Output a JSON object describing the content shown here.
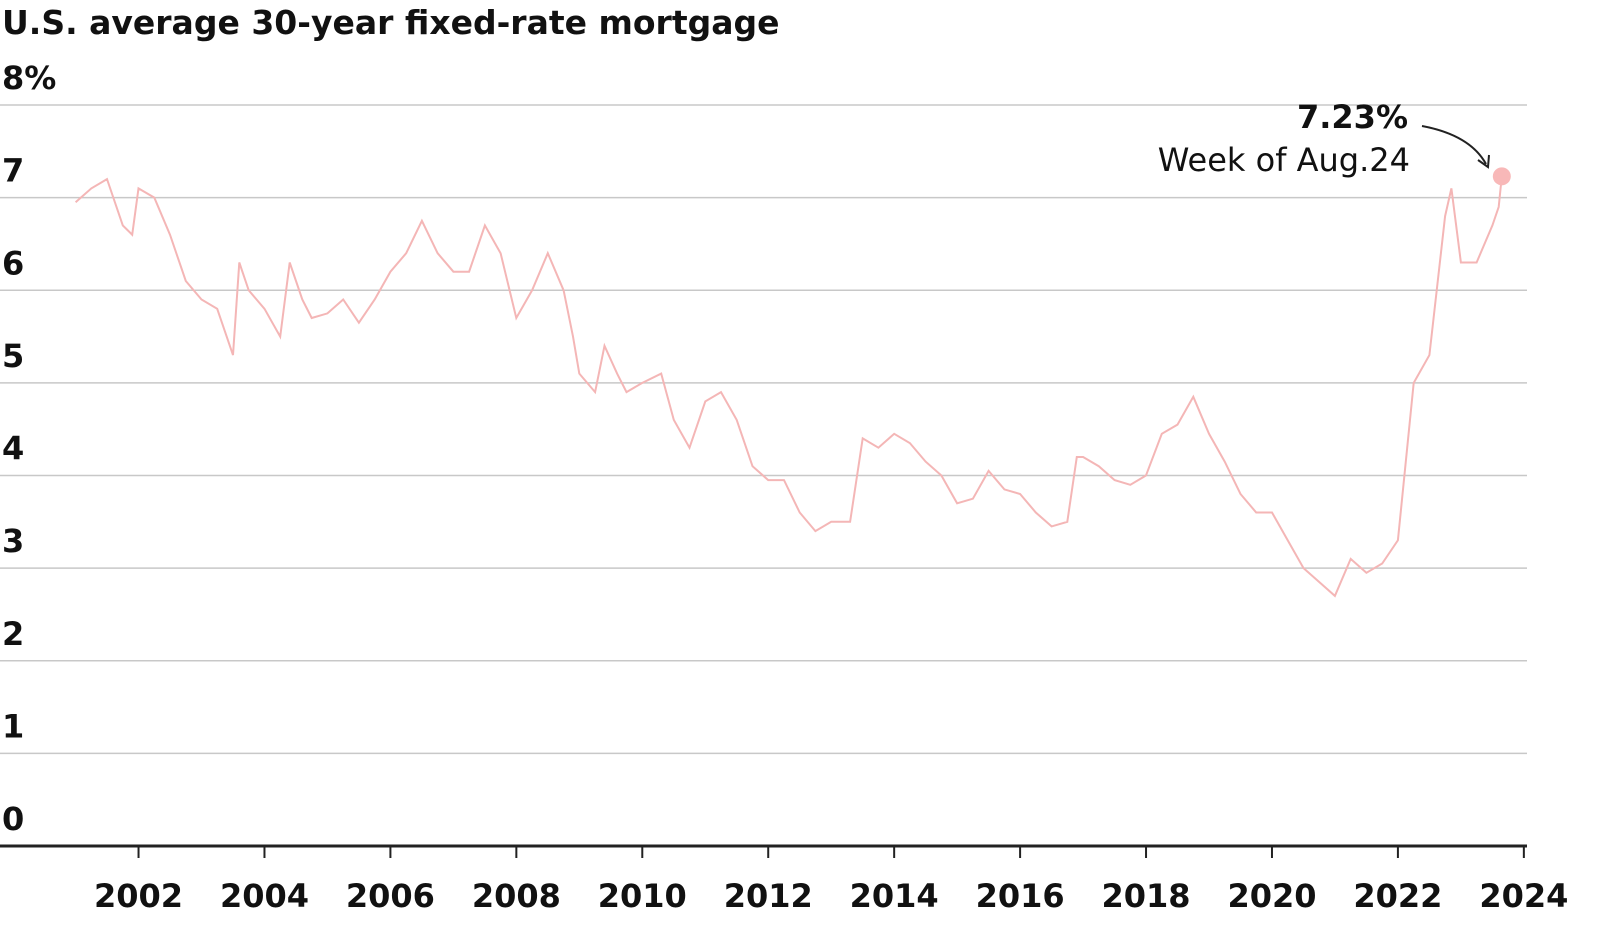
{
  "chart_data": {
    "type": "line",
    "title": "U.S. average 30-year fixed-rate mortgage",
    "x": [
      2001.0,
      2001.25,
      2001.5,
      2001.75,
      2001.9,
      2002.0,
      2002.25,
      2002.5,
      2002.75,
      2003.0,
      2003.25,
      2003.5,
      2003.6,
      2003.75,
      2004.0,
      2004.25,
      2004.4,
      2004.6,
      2004.75,
      2005.0,
      2005.25,
      2005.5,
      2005.75,
      2006.0,
      2006.25,
      2006.5,
      2006.75,
      2007.0,
      2007.25,
      2007.5,
      2007.75,
      2008.0,
      2008.25,
      2008.5,
      2008.75,
      2008.9,
      2009.0,
      2009.25,
      2009.4,
      2009.6,
      2009.75,
      2010.0,
      2010.3,
      2010.5,
      2010.75,
      2011.0,
      2011.25,
      2011.5,
      2011.75,
      2012.0,
      2012.25,
      2012.5,
      2012.75,
      2013.0,
      2013.3,
      2013.5,
      2013.75,
      2014.0,
      2014.25,
      2014.5,
      2014.75,
      2015.0,
      2015.25,
      2015.5,
      2015.75,
      2016.0,
      2016.25,
      2016.5,
      2016.75,
      2016.9,
      2017.0,
      2017.25,
      2017.5,
      2017.75,
      2018.0,
      2018.25,
      2018.5,
      2018.75,
      2019.0,
      2019.25,
      2019.5,
      2019.75,
      2020.0,
      2020.25,
      2020.5,
      2020.75,
      2021.0,
      2021.25,
      2021.5,
      2021.75,
      2022.0,
      2022.25,
      2022.5,
      2022.75,
      2022.85,
      2023.0,
      2023.25,
      2023.5,
      2023.6,
      2023.65
    ],
    "series": [
      {
        "name": "30-year fixed rate",
        "color": "#f4b6b6",
        "values": [
          6.95,
          7.1,
          7.2,
          6.7,
          6.6,
          7.1,
          7.0,
          6.6,
          6.1,
          5.9,
          5.8,
          5.3,
          6.3,
          6.0,
          5.8,
          5.5,
          6.3,
          5.9,
          5.7,
          5.75,
          5.9,
          5.65,
          5.9,
          6.2,
          6.4,
          6.75,
          6.4,
          6.2,
          6.2,
          6.7,
          6.4,
          5.7,
          6.0,
          6.4,
          6.0,
          5.5,
          5.1,
          4.9,
          5.4,
          5.1,
          4.9,
          5.0,
          5.1,
          4.6,
          4.3,
          4.8,
          4.9,
          4.6,
          4.1,
          3.95,
          3.95,
          3.6,
          3.4,
          3.5,
          3.5,
          4.4,
          4.3,
          4.45,
          4.35,
          4.15,
          4.0,
          3.7,
          3.75,
          4.05,
          3.85,
          3.8,
          3.6,
          3.45,
          3.5,
          4.2,
          4.2,
          4.1,
          3.95,
          3.9,
          4.0,
          4.45,
          4.55,
          4.85,
          4.45,
          4.15,
          3.8,
          3.6,
          3.6,
          3.3,
          3.0,
          2.85,
          2.7,
          3.1,
          2.95,
          3.05,
          3.3,
          5.0,
          5.3,
          6.8,
          7.1,
          6.3,
          6.3,
          6.7,
          6.9,
          7.23
        ]
      }
    ],
    "highlight": {
      "x": 2023.65,
      "value": 7.23,
      "label": "7.23%",
      "note": "Week of Aug.24",
      "color": "#f8b8b8"
    },
    "xlim": [
      1999.8,
      2024.05
    ],
    "xticks": [
      2002,
      2004,
      2006,
      2008,
      2010,
      2012,
      2014,
      2016,
      2018,
      2020,
      2022,
      2024
    ],
    "ylim": [
      0,
      8
    ],
    "yticks": [
      0,
      1,
      2,
      3,
      4,
      5,
      6,
      7,
      {
        "value": 8,
        "label": "8%"
      }
    ],
    "grid": true
  }
}
